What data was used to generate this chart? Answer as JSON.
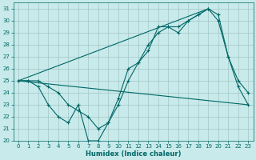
{
  "title": "",
  "xlabel": "Humidex (Indice chaleur)",
  "ylabel": "",
  "bg_color": "#c8eaea",
  "grid_color": "#9bbcbc",
  "line_color": "#006666",
  "ylim": [
    20,
    31.5
  ],
  "xlim": [
    -0.5,
    23.5
  ],
  "yticks": [
    20,
    21,
    22,
    23,
    24,
    25,
    26,
    27,
    28,
    29,
    30,
    31
  ],
  "xticks": [
    0,
    1,
    2,
    3,
    4,
    5,
    6,
    7,
    8,
    9,
    10,
    11,
    12,
    13,
    14,
    15,
    16,
    17,
    18,
    19,
    20,
    21,
    22,
    23
  ],
  "series1_x": [
    0,
    1,
    2,
    3,
    4,
    5,
    6,
    7,
    8,
    9,
    10,
    11,
    12,
    13,
    14,
    15,
    16,
    17,
    18,
    19,
    20,
    21,
    22,
    23
  ],
  "series1_y": [
    25,
    25,
    24.5,
    23,
    22,
    21.5,
    23,
    20,
    20,
    21.5,
    23.5,
    26,
    26.5,
    27.5,
    29.5,
    29.5,
    29.5,
    30,
    30.5,
    31,
    30,
    27,
    24.5,
    23
  ],
  "series2_x": [
    0,
    1,
    2,
    3,
    4,
    5,
    6,
    7,
    8,
    9,
    10,
    11,
    12,
    13,
    14,
    15,
    16,
    17,
    18,
    19,
    20,
    21,
    22,
    23
  ],
  "series2_y": [
    25,
    25,
    25,
    24.5,
    24,
    23,
    22.5,
    22,
    21,
    21.5,
    23,
    25,
    26.5,
    28,
    29,
    29.5,
    29,
    30,
    30.5,
    31,
    30.5,
    27,
    25,
    24
  ],
  "series3_x": [
    0,
    19
  ],
  "series3_y": [
    25,
    31
  ],
  "series4_x": [
    0,
    23
  ],
  "series4_y": [
    25,
    23
  ]
}
